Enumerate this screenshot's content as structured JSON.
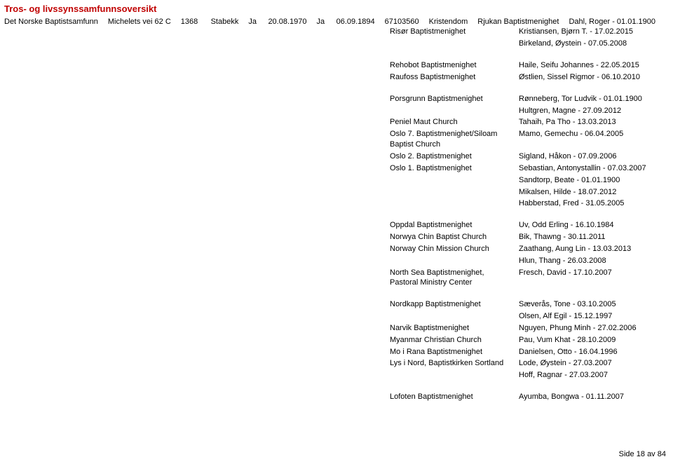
{
  "title": "Tros- og livssynssamfunnsoversikt",
  "main": {
    "org": "Det Norske Baptistsamfunn",
    "addr": "Michelets vei 62 C",
    "num": "1368",
    "place": "Stabekk",
    "ja1": "Ja",
    "d1": "20.08.1970",
    "ja2": "Ja",
    "d2": "06.09.1894",
    "id": "67103560",
    "rel": "Kristendom",
    "cong": "Rjukan Baptistmenighet",
    "pers": "Dahl, Roger - 01.01.1900"
  },
  "extra_persons": [
    {
      "cong": "Risør Baptistmenighet",
      "pers": "Kristiansen, Bjørn T. - 17.02.2015"
    },
    {
      "cong": "",
      "pers": "Birkeland, Øystein - 07.05.2008"
    }
  ],
  "blocks": [
    [
      {
        "cong": "Rehobot Baptistmenighet",
        "pers": "Haile, Seifu Johannes - 22.05.2015"
      },
      {
        "cong": "Raufoss Baptistmenighet",
        "pers": "Østlien, Sissel Rigmor - 06.10.2010"
      }
    ],
    [
      {
        "cong": "Porsgrunn Baptistmenighet",
        "pers": "Rønneberg, Tor Ludvik - 01.01.1900"
      },
      {
        "cong": "",
        "pers": "Hultgren, Magne - 27.09.2012"
      },
      {
        "cong": "Peniel Maut Church",
        "pers": "Tahaih, Pa Tho - 13.03.2013"
      },
      {
        "cong": "Oslo 7. Baptistmenighet/Siloam Baptist Church",
        "pers": "Mamo, Gemechu - 06.04.2005"
      },
      {
        "cong": "Oslo 2. Baptistmenighet",
        "pers": "Sigland, Håkon - 07.09.2006"
      },
      {
        "cong": "Oslo 1. Baptistmenighet",
        "pers": "Sebastian, Antonystallin - 07.03.2007"
      },
      {
        "cong": "",
        "pers": "Sandtorp, Beate - 01.01.1900"
      },
      {
        "cong": "",
        "pers": "Mikalsen, Hilde - 18.07.2012"
      },
      {
        "cong": "",
        "pers": "Habberstad, Fred - 31.05.2005"
      }
    ],
    [
      {
        "cong": "Oppdal Baptistmenighet",
        "pers": "Uv, Odd Erling - 16.10.1984"
      },
      {
        "cong": "Norwya Chin Baptist Church",
        "pers": "Bik, Thawng - 30.11.2011"
      },
      {
        "cong": "Norway Chin Mission Church",
        "pers": "Zaathang, Aung Lin - 13.03.2013"
      },
      {
        "cong": "",
        "pers": "Hlun, Thang - 26.03.2008"
      },
      {
        "cong": "North Sea Baptistmenighet, Pastoral Ministry Center",
        "pers": "Fresch, David - 17.10.2007"
      }
    ],
    [
      {
        "cong": "Nordkapp Baptistmenighet",
        "pers": "Sæverås, Tone - 03.10.2005"
      },
      {
        "cong": "",
        "pers": "Olsen, Alf Egil - 15.12.1997"
      },
      {
        "cong": "Narvik Baptistmenighet",
        "pers": "Nguyen, Phung Minh - 27.02.2006"
      },
      {
        "cong": "Myanmar Christian Church",
        "pers": "Pau, Vum Khat - 28.10.2009"
      },
      {
        "cong": "Mo i Rana Baptistmenighet",
        "pers": "Danielsen, Otto - 16.04.1996"
      },
      {
        "cong": "Lys i Nord, Baptistkirken Sortland",
        "pers": "Lode, Øystein - 27.03.2007"
      },
      {
        "cong": "",
        "pers": "Hoff, Ragnar - 27.03.2007"
      }
    ],
    [
      {
        "cong": "Lofoten Baptistmenighet",
        "pers": "Ayumba, Bongwa - 01.11.2007"
      }
    ]
  ],
  "footer": {
    "pre": "Side",
    "page": "18",
    "mid": "av",
    "total": "84"
  }
}
